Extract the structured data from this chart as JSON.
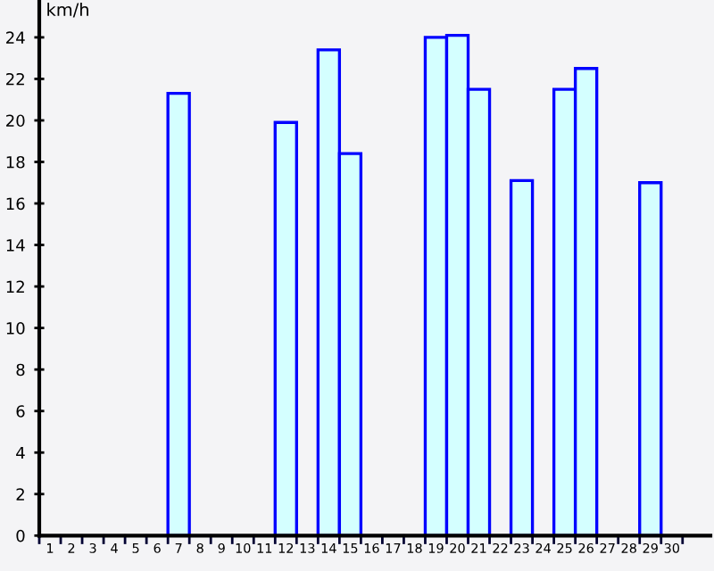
{
  "chart_data": {
    "type": "bar",
    "ylabel": "km/h",
    "categories": [
      "1",
      "2",
      "3",
      "4",
      "5",
      "6",
      "7",
      "8",
      "9",
      "10",
      "11",
      "12",
      "13",
      "14",
      "15",
      "16",
      "17",
      "18",
      "19",
      "20",
      "21",
      "22",
      "23",
      "24",
      "25",
      "26",
      "27",
      "28",
      "29",
      "30"
    ],
    "values": [
      null,
      null,
      null,
      null,
      null,
      null,
      21.3,
      null,
      null,
      null,
      null,
      19.9,
      null,
      23.4,
      18.4,
      null,
      null,
      null,
      24.0,
      24.1,
      21.5,
      null,
      17.1,
      null,
      21.5,
      22.5,
      null,
      null,
      17.0,
      null
    ],
    "color": "#d4ffff",
    "ylim": [
      0,
      25.8
    ],
    "yticks": [
      0,
      2,
      4,
      6,
      8,
      10,
      12,
      14,
      16,
      18,
      20,
      22,
      24
    ],
    "grid": false,
    "legend": false
  }
}
